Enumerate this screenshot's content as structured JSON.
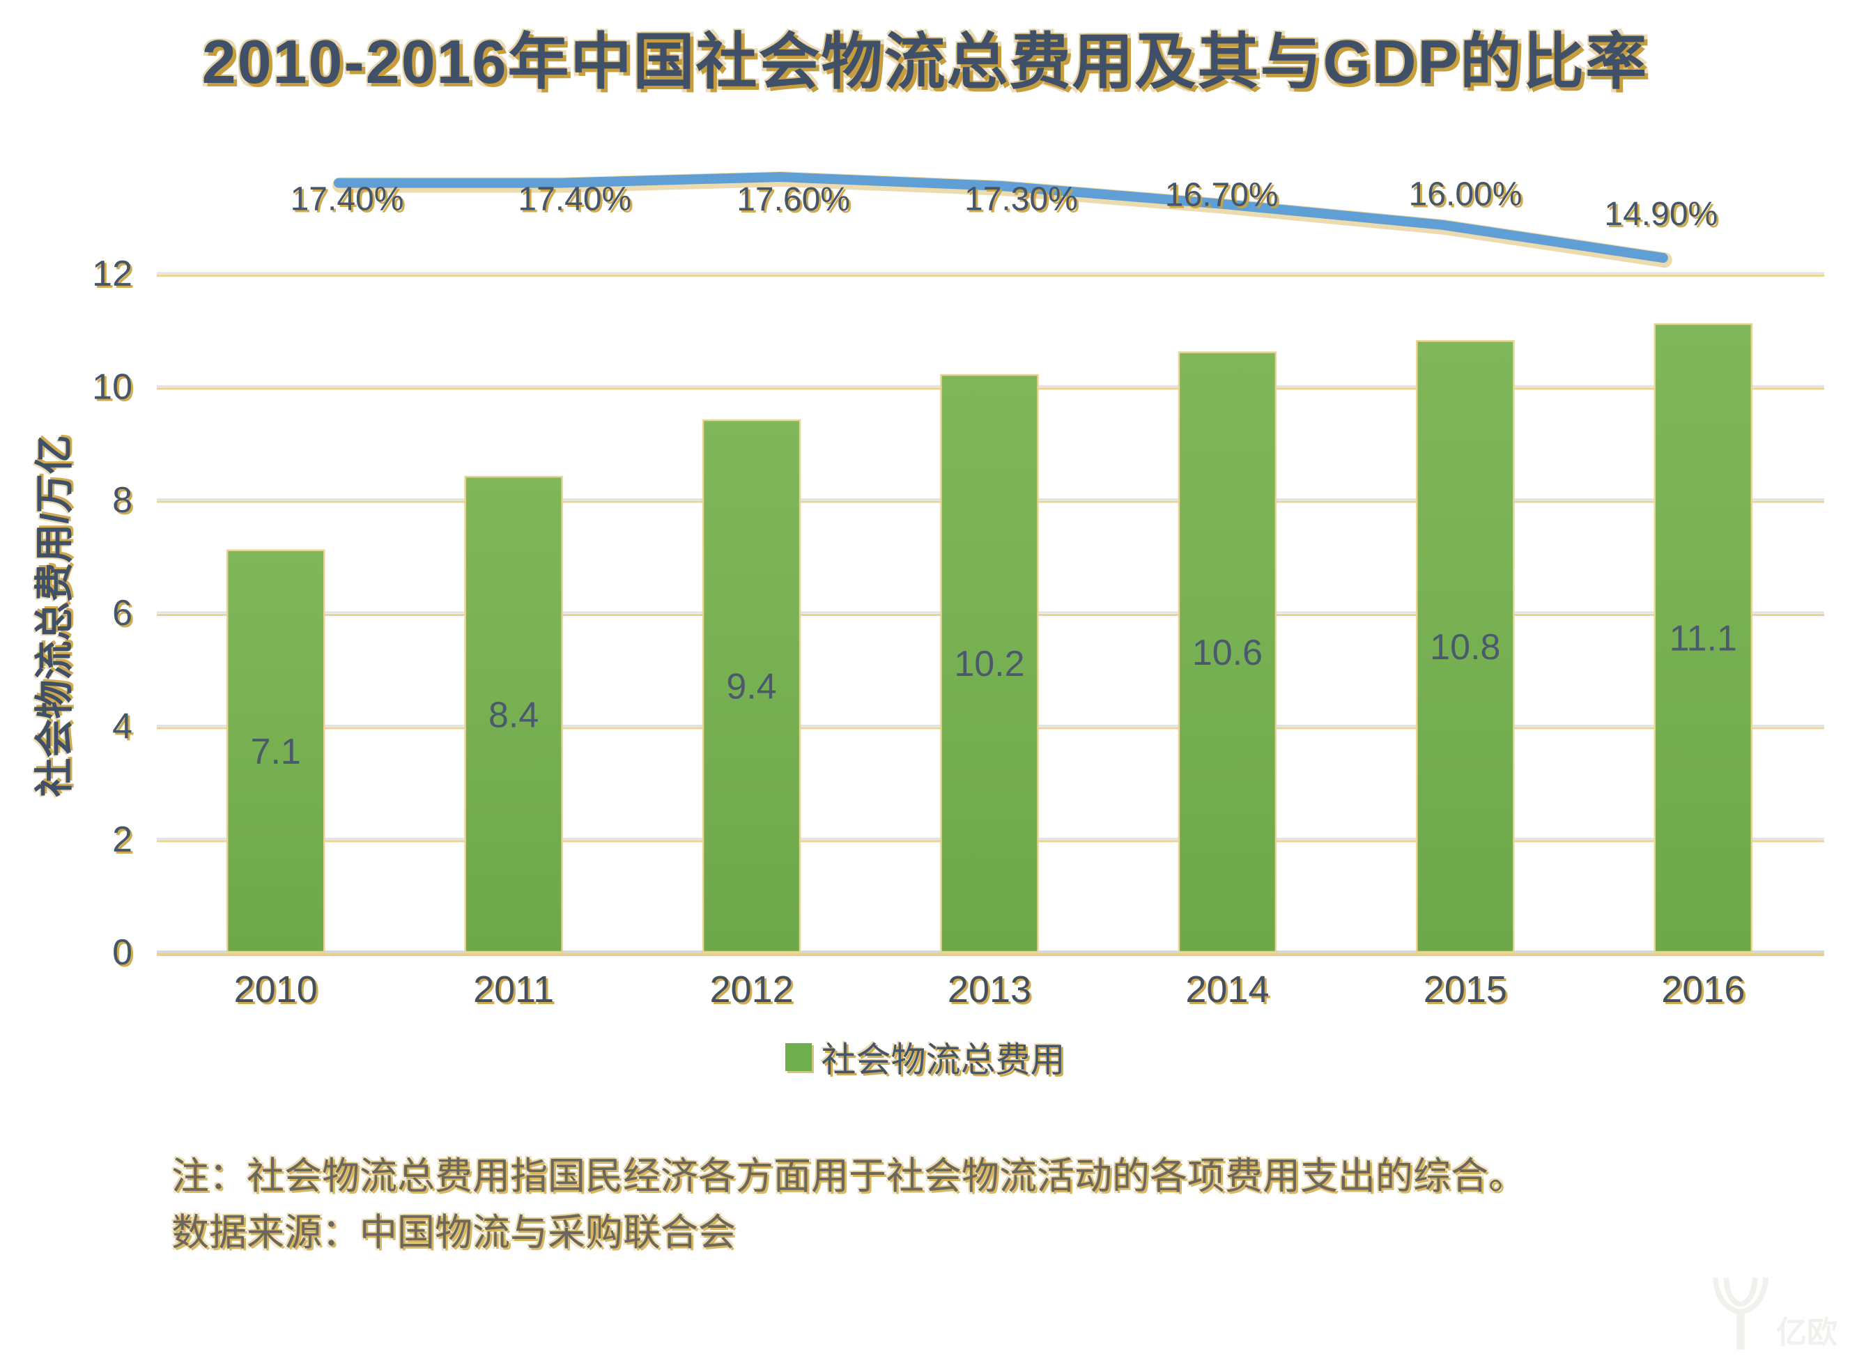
{
  "title": "2010-2016年中国社会物流总费用及其与GDP的比率",
  "chart_data": {
    "type": "bar+line",
    "title": "2010-2016年中国社会物流总费用及其与GDP的比率",
    "categories": [
      "2010",
      "2011",
      "2012",
      "2013",
      "2014",
      "2015",
      "2016"
    ],
    "series": [
      {
        "name": "社会物流总费用",
        "type": "bar",
        "unit": "万亿",
        "values": [
          7.1,
          8.4,
          9.4,
          10.2,
          10.6,
          10.8,
          11.1
        ],
        "labels": [
          "7.1",
          "8.4",
          "9.4",
          "10.2",
          "10.6",
          "10.8",
          "11.1"
        ],
        "color": "#74b050"
      },
      {
        "name": "与GDP的比率",
        "type": "line",
        "values": [
          17.4,
          17.4,
          17.6,
          17.3,
          16.7,
          16.0,
          14.9
        ],
        "labels": [
          "17.40%",
          "17.40%",
          "17.60%",
          "17.30%",
          "16.70%",
          "16.00%",
          "14.90%"
        ],
        "color": "#5f9fd6"
      }
    ],
    "y_axis": {
      "title": "社会物流总费用/万亿",
      "ticks": [
        0,
        2,
        4,
        6,
        8,
        10,
        12
      ],
      "range": [
        0,
        12
      ]
    },
    "x_axis": {
      "labels": [
        "2010",
        "2011",
        "2012",
        "2013",
        "2014",
        "2015",
        "2016"
      ]
    },
    "legend": {
      "position": "bottom",
      "entries": [
        {
          "label": "社会物流总费用",
          "color": "#6fae4c"
        }
      ]
    },
    "grid": true
  },
  "notes": {
    "note": "注：社会物流总费用指国民经济各方面用于社会物流活动的各项费用支出的综合。",
    "source": "数据来源：中国物流与采购联合会"
  },
  "watermark": "亿欧",
  "colors": {
    "bar_fill": "#7db356",
    "bar_stroke": "#e9d493",
    "line": "#5f9fd6",
    "gold_glow": "#cba23e",
    "text_slate": "#46566a",
    "grid_gray": "#e0e4e6",
    "grid_gold": "#ecd392"
  }
}
